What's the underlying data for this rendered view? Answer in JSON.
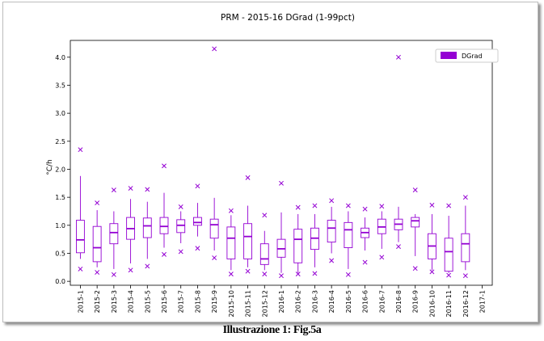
{
  "caption": "Illustrazione   1: Fig.5a",
  "colors": {
    "series": "#9400D3",
    "axis": "#000000",
    "background": "#ffffff"
  },
  "chart_data": {
    "type": "boxplot",
    "title": "PRM - 2015-16 DGrad (1-99pct)",
    "xlabel": "",
    "ylabel": "°C/h",
    "ylim": [
      -0.07,
      4.3
    ],
    "yticks": [
      "0.0",
      "0.5",
      "1.0",
      "1.5",
      "2.0",
      "2.5",
      "3.0",
      "3.5",
      "4.0"
    ],
    "legend": {
      "label": "DGrad",
      "position": "top-right"
    },
    "categories": [
      "2015-1",
      "2015-2",
      "2015-3",
      "2015-4",
      "2015-5",
      "2015-6",
      "2015-7",
      "2015-8",
      "2015-9",
      "2015-10",
      "2015-11",
      "2015-12",
      "2016-1",
      "2016-2",
      "2016-3",
      "2016-4",
      "2016-5",
      "2016-6",
      "2016-7",
      "2016-8",
      "2016-9",
      "2016-10",
      "2016-11",
      "2016-12",
      "2017-1"
    ],
    "series": [
      {
        "name": "DGrad",
        "boxes": [
          {
            "category": "2015-1",
            "whislo": 0.4,
            "q1": 0.51,
            "med": 0.74,
            "q3": 1.09,
            "whishi": 1.88,
            "fliers": [
              0.22,
              2.35
            ]
          },
          {
            "category": "2015-2",
            "whislo": 0.25,
            "q1": 0.35,
            "med": 0.6,
            "q3": 0.98,
            "whishi": 1.27,
            "fliers": [
              0.16,
              1.4
            ]
          },
          {
            "category": "2015-3",
            "whislo": 0.22,
            "q1": 0.67,
            "med": 0.87,
            "q3": 1.03,
            "whishi": 1.25,
            "fliers": [
              0.12,
              1.63
            ]
          },
          {
            "category": "2015-4",
            "whislo": 0.32,
            "q1": 0.75,
            "med": 0.94,
            "q3": 1.14,
            "whishi": 1.47,
            "fliers": [
              0.2,
              1.66
            ]
          },
          {
            "category": "2015-5",
            "whislo": 0.4,
            "q1": 0.78,
            "med": 0.99,
            "q3": 1.13,
            "whishi": 1.42,
            "fliers": [
              0.27,
              1.64
            ]
          },
          {
            "category": "2015-6",
            "whislo": 0.6,
            "q1": 0.85,
            "med": 0.98,
            "q3": 1.14,
            "whishi": 1.58,
            "fliers": [
              0.48,
              2.06
            ]
          },
          {
            "category": "2015-7",
            "whislo": 0.68,
            "q1": 0.87,
            "med": 1.0,
            "q3": 1.1,
            "whishi": 1.25,
            "fliers": [
              0.53,
              1.33
            ]
          },
          {
            "category": "2015-8",
            "whislo": 0.8,
            "q1": 1.0,
            "med": 1.05,
            "q3": 1.14,
            "whishi": 1.4,
            "fliers": [
              0.59,
              1.7
            ]
          },
          {
            "category": "2015-9",
            "whislo": 0.55,
            "q1": 0.77,
            "med": 1.01,
            "q3": 1.11,
            "whishi": 1.49,
            "fliers": [
              0.42,
              4.15
            ]
          },
          {
            "category": "2015-10",
            "whislo": 0.2,
            "q1": 0.4,
            "med": 0.77,
            "q3": 0.97,
            "whishi": 1.18,
            "fliers": [
              0.13,
              1.26
            ]
          },
          {
            "category": "2015-11",
            "whislo": 0.25,
            "q1": 0.4,
            "med": 0.8,
            "q3": 1.03,
            "whishi": 1.35,
            "fliers": [
              0.18,
              1.85
            ]
          },
          {
            "category": "2015-12",
            "whislo": 0.2,
            "q1": 0.3,
            "med": 0.4,
            "q3": 0.67,
            "whishi": 0.9,
            "fliers": [
              0.13,
              1.18
            ]
          },
          {
            "category": "2016-1",
            "whislo": 0.15,
            "q1": 0.43,
            "med": 0.58,
            "q3": 0.75,
            "whishi": 1.23,
            "fliers": [
              0.1,
              1.75
            ]
          },
          {
            "category": "2016-2",
            "whislo": 0.15,
            "q1": 0.33,
            "med": 0.75,
            "q3": 0.93,
            "whishi": 1.2,
            "fliers": [
              0.13,
              1.32
            ]
          },
          {
            "category": "2016-3",
            "whislo": 0.25,
            "q1": 0.57,
            "med": 0.77,
            "q3": 0.95,
            "whishi": 1.2,
            "fliers": [
              0.14,
              1.35
            ]
          },
          {
            "category": "2016-4",
            "whislo": 0.5,
            "q1": 0.7,
            "med": 0.95,
            "q3": 1.09,
            "whishi": 1.33,
            "fliers": [
              0.37,
              1.44
            ]
          },
          {
            "category": "2016-5",
            "whislo": 0.22,
            "q1": 0.6,
            "med": 0.92,
            "q3": 1.05,
            "whishi": 1.25,
            "fliers": [
              0.12,
              1.35
            ]
          },
          {
            "category": "2016-6",
            "whislo": 0.55,
            "q1": 0.78,
            "med": 0.87,
            "q3": 0.95,
            "whishi": 1.14,
            "fliers": [
              0.34,
              1.29
            ]
          },
          {
            "category": "2016-7",
            "whislo": 0.58,
            "q1": 0.85,
            "med": 0.97,
            "q3": 1.11,
            "whishi": 1.25,
            "fliers": [
              0.43,
              1.34
            ]
          },
          {
            "category": "2016-8",
            "whislo": 0.7,
            "q1": 0.92,
            "med": 1.02,
            "q3": 1.11,
            "whishi": 1.33,
            "fliers": [
              0.62,
              4.0
            ]
          },
          {
            "category": "2016-9",
            "whislo": 0.45,
            "q1": 0.97,
            "med": 1.08,
            "q3": 1.14,
            "whishi": 1.2,
            "fliers": [
              0.23,
              1.63
            ]
          },
          {
            "category": "2016-10",
            "whislo": 0.2,
            "q1": 0.4,
            "med": 0.63,
            "q3": 0.85,
            "whishi": 1.2,
            "fliers": [
              0.17,
              1.36
            ]
          },
          {
            "category": "2016-11",
            "whislo": 0.15,
            "q1": 0.18,
            "med": 0.53,
            "q3": 0.77,
            "whishi": 1.17,
            "fliers": [
              0.11,
              1.35
            ]
          },
          {
            "category": "2016-12",
            "whislo": 0.2,
            "q1": 0.35,
            "med": 0.67,
            "q3": 0.85,
            "whishi": 1.35,
            "fliers": [
              0.1,
              1.5
            ]
          }
        ]
      }
    ]
  }
}
